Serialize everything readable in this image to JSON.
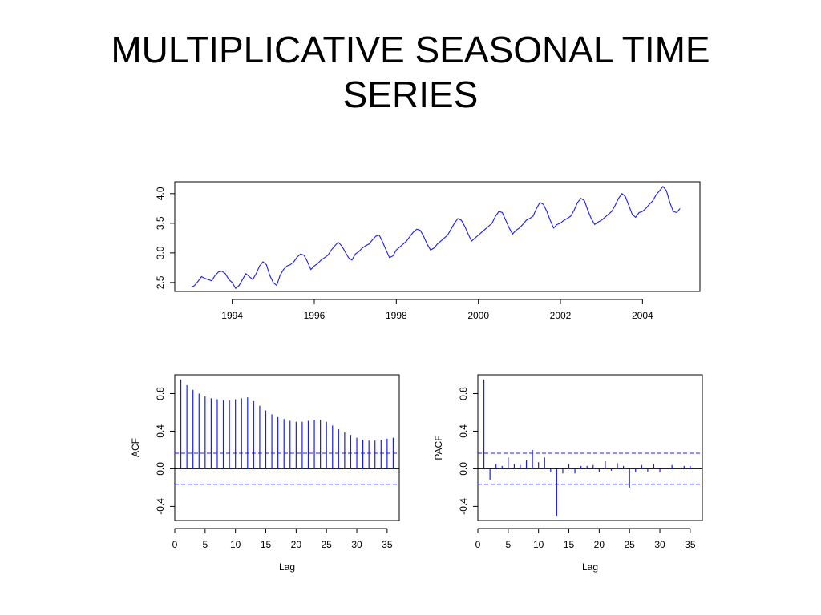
{
  "slide": {
    "title": "MULTIPLICATIVE SEASONAL TIME SERIES"
  },
  "colors": {
    "series": "#1a1aff",
    "axis": "#000000",
    "ci": "#1a1aff"
  },
  "chart_data": [
    {
      "type": "line",
      "title": "",
      "xlabel": "",
      "ylabel": "",
      "xlim": [
        1992.6,
        2005.4
      ],
      "ylim": [
        2.35,
        4.2
      ],
      "xticks": [
        1994,
        1996,
        1998,
        2000,
        2002,
        2004
      ],
      "yticks": [
        2.5,
        3.0,
        3.5,
        4.0
      ],
      "grid": false,
      "series": [
        {
          "start": 1993.0,
          "frequency": 12,
          "values": [
            2.42,
            2.45,
            2.52,
            2.6,
            2.57,
            2.55,
            2.53,
            2.62,
            2.68,
            2.69,
            2.65,
            2.55,
            2.5,
            2.4,
            2.45,
            2.55,
            2.65,
            2.6,
            2.55,
            2.65,
            2.78,
            2.85,
            2.8,
            2.62,
            2.5,
            2.45,
            2.62,
            2.72,
            2.78,
            2.8,
            2.85,
            2.93,
            2.98,
            2.96,
            2.85,
            2.72,
            2.78,
            2.82,
            2.88,
            2.92,
            2.96,
            3.05,
            3.12,
            3.18,
            3.12,
            3.02,
            2.92,
            2.88,
            2.98,
            3.02,
            3.08,
            3.12,
            3.15,
            3.22,
            3.28,
            3.3,
            3.18,
            3.05,
            2.92,
            2.95,
            3.05,
            3.1,
            3.15,
            3.2,
            3.28,
            3.35,
            3.4,
            3.38,
            3.28,
            3.15,
            3.05,
            3.08,
            3.15,
            3.2,
            3.25,
            3.3,
            3.4,
            3.5,
            3.58,
            3.55,
            3.45,
            3.32,
            3.2,
            3.25,
            3.3,
            3.35,
            3.4,
            3.45,
            3.5,
            3.62,
            3.7,
            3.68,
            3.55,
            3.42,
            3.32,
            3.38,
            3.42,
            3.48,
            3.55,
            3.58,
            3.62,
            3.75,
            3.85,
            3.82,
            3.7,
            3.55,
            3.42,
            3.48,
            3.5,
            3.55,
            3.58,
            3.62,
            3.72,
            3.85,
            3.92,
            3.88,
            3.72,
            3.58,
            3.48,
            3.52,
            3.55,
            3.6,
            3.65,
            3.7,
            3.8,
            3.92,
            4.0,
            3.95,
            3.8,
            3.65,
            3.6,
            3.68,
            3.7,
            3.75,
            3.82,
            3.88,
            3.98,
            4.05,
            4.12,
            4.05,
            3.85,
            3.7,
            3.68,
            3.75
          ]
        }
      ]
    },
    {
      "type": "bar",
      "title": "",
      "xlabel": "Lag",
      "ylabel": "ACF",
      "xlim": [
        0,
        37
      ],
      "ylim": [
        -0.55,
        1.0
      ],
      "xticks": [
        0,
        5,
        10,
        15,
        20,
        25,
        30,
        35
      ],
      "yticks": [
        -0.4,
        0.0,
        0.4,
        0.8
      ],
      "ci": 0.165,
      "lags": [
        1,
        2,
        3,
        4,
        5,
        6,
        7,
        8,
        9,
        10,
        11,
        12,
        13,
        14,
        15,
        16,
        17,
        18,
        19,
        20,
        21,
        22,
        23,
        24,
        25,
        26,
        27,
        28,
        29,
        30,
        31,
        32,
        33,
        34,
        35,
        36
      ],
      "values": [
        0.95,
        0.89,
        0.84,
        0.8,
        0.77,
        0.75,
        0.74,
        0.73,
        0.73,
        0.74,
        0.75,
        0.76,
        0.72,
        0.67,
        0.62,
        0.58,
        0.55,
        0.53,
        0.51,
        0.5,
        0.5,
        0.51,
        0.52,
        0.52,
        0.5,
        0.46,
        0.42,
        0.39,
        0.36,
        0.33,
        0.31,
        0.3,
        0.3,
        0.31,
        0.32,
        0.33
      ]
    },
    {
      "type": "bar",
      "title": "",
      "xlabel": "Lag",
      "ylabel": "PACF",
      "xlim": [
        0,
        37
      ],
      "ylim": [
        -0.55,
        1.0
      ],
      "xticks": [
        0,
        5,
        10,
        15,
        20,
        25,
        30,
        35
      ],
      "yticks": [
        -0.4,
        0.0,
        0.4,
        0.8
      ],
      "ci": 0.165,
      "lags": [
        1,
        2,
        3,
        4,
        5,
        6,
        7,
        8,
        9,
        10,
        11,
        12,
        13,
        14,
        15,
        16,
        17,
        18,
        19,
        20,
        21,
        22,
        23,
        24,
        25,
        26,
        27,
        28,
        29,
        30,
        31,
        32,
        33,
        34,
        35,
        36
      ],
      "values": [
        0.95,
        -0.12,
        0.05,
        0.03,
        0.12,
        0.05,
        0.04,
        0.09,
        0.2,
        0.07,
        0.12,
        -0.03,
        -0.5,
        -0.05,
        0.05,
        -0.05,
        0.03,
        0.03,
        0.04,
        -0.03,
        0.08,
        -0.02,
        0.06,
        0.03,
        -0.2,
        -0.04,
        0.04,
        -0.03,
        0.05,
        -0.04,
        0.0,
        0.04,
        0.0,
        0.03,
        0.03,
        0.0
      ]
    }
  ]
}
